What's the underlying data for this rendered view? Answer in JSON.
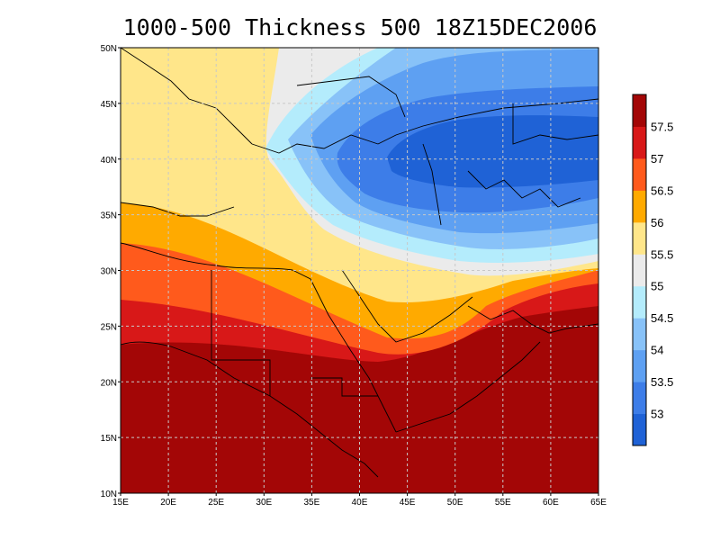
{
  "title": "1000-500 Thickness 500 18Z15DEC2006",
  "map": {
    "lon_labels": [
      "15E",
      "20E",
      "25E",
      "30E",
      "35E",
      "40E",
      "45E",
      "50E",
      "55E",
      "60E",
      "65E"
    ],
    "lat_labels": [
      "10N",
      "15N",
      "20N",
      "25N",
      "30N",
      "35N",
      "40N",
      "45N",
      "50N"
    ],
    "lon_range": [
      15,
      65
    ],
    "lat_range": [
      10,
      50
    ],
    "grid": true,
    "gridline_step_deg": 5
  },
  "colorbar": {
    "levels": [
      "53",
      "53.5",
      "54",
      "54.5",
      "55",
      "55.5",
      "56",
      "56.5",
      "57",
      "57.5"
    ],
    "colors": [
      "#1f62d6",
      "#3d7de8",
      "#5ea0f2",
      "#88c2f8",
      "#b4ecfc",
      "#ebebeb",
      "#ffe68a",
      "#ffaa00",
      "#ff5a1c",
      "#d81818",
      "#a30606"
    ]
  }
}
